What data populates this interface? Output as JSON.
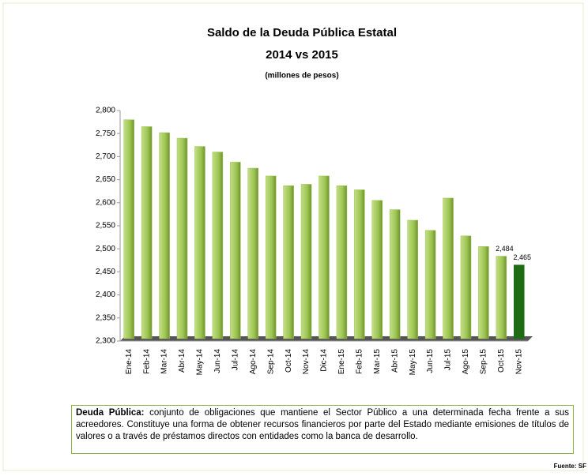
{
  "chart_data": {
    "type": "bar",
    "title": "Saldo de la Deuda Pública Estatal",
    "subtitle": "2014 vs 2015",
    "unit_label": "(millones de pesos)",
    "categories": [
      "Ene-14",
      "Feb-14",
      "Mar-14",
      "Abr-14",
      "May-14",
      "Jun-14",
      "Jul-14",
      "Ago-14",
      "Sep-14",
      "Oct-14",
      "Nov-14",
      "Dic-14",
      "Ene-15",
      "Feb-15",
      "Mar-15",
      "Abr-15",
      "May-15",
      "Jun-15",
      "Jul-15",
      "Ago-15",
      "Sep-15",
      "Oct-15",
      "Nov-15"
    ],
    "values": [
      2780,
      2765,
      2752,
      2740,
      2722,
      2710,
      2688,
      2675,
      2658,
      2637,
      2640,
      2658,
      2637,
      2628,
      2605,
      2585,
      2562,
      2540,
      2610,
      2528,
      2505,
      2484,
      2465
    ],
    "value_labels": [
      null,
      null,
      null,
      null,
      null,
      null,
      null,
      null,
      null,
      null,
      null,
      null,
      null,
      null,
      null,
      null,
      null,
      null,
      null,
      null,
      null,
      "2,484",
      "2,465"
    ],
    "colors": [
      "#9cc451",
      "#9cc451",
      "#9cc451",
      "#9cc451",
      "#9cc451",
      "#9cc451",
      "#9cc451",
      "#9cc451",
      "#9cc451",
      "#9cc451",
      "#9cc451",
      "#9cc451",
      "#9cc451",
      "#9cc451",
      "#9cc451",
      "#9cc451",
      "#9cc451",
      "#9cc451",
      "#9cc451",
      "#9cc451",
      "#9cc451",
      "#9cc451",
      "#1e6b14"
    ],
    "ylim": [
      2300,
      2800
    ],
    "yticks": [
      {
        "value": 2300,
        "label": "2,300"
      },
      {
        "value": 2350,
        "label": "2,350"
      },
      {
        "value": 2400,
        "label": "2,400"
      },
      {
        "value": 2450,
        "label": "2,450"
      },
      {
        "value": 2500,
        "label": "2,500"
      },
      {
        "value": 2550,
        "label": "2,550"
      },
      {
        "value": 2600,
        "label": "2,600"
      },
      {
        "value": 2650,
        "label": "2,650"
      },
      {
        "value": 2700,
        "label": "2,700"
      },
      {
        "value": 2750,
        "label": "2,750"
      },
      {
        "value": 2800,
        "label": "2,800"
      }
    ],
    "grid": false
  },
  "note": {
    "term": "Deuda Pública:",
    "text": " conjunto de obligaciones que mantiene el Sector Público a una determinada fecha frente a sus acreedores. Constituye una forma de obtener recursos financieros por parte del Estado mediante emisiones de títulos de valores o a través de préstamos directos con entidades como la banca de desarrollo."
  },
  "source": "Fuente: SF"
}
